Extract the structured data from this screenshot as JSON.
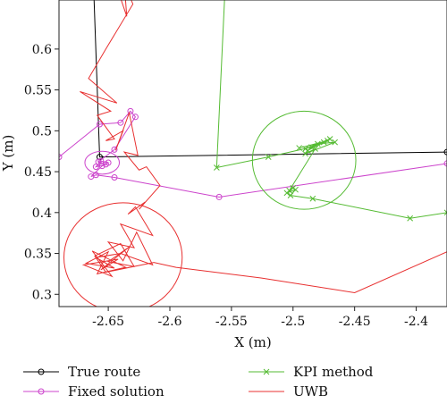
{
  "chart_data": {
    "type": "line",
    "xlabel": "X (m)",
    "ylabel": "Y (m)",
    "xlim": [
      -2.69,
      -2.375
    ],
    "ylim": [
      0.285,
      0.66
    ],
    "xticks": [
      -2.65,
      -2.6,
      -2.55,
      -2.5,
      -2.45,
      -2.4
    ],
    "xtick_labels": [
      "-2.65",
      "-2.6",
      "-2.55",
      "-2.5",
      "-2.45",
      "-2.4"
    ],
    "yticks": [
      0.3,
      0.35,
      0.4,
      0.45,
      0.5,
      0.55,
      0.6
    ],
    "ytick_labels": [
      "0.3",
      "0.35",
      "0.4",
      "0.45",
      "0.5",
      "0.55",
      "0.6"
    ],
    "grid": false,
    "legend_position": "below",
    "series": [
      {
        "name": "True route",
        "color": "#000000",
        "marker": "o",
        "points": [
          [
            -2.662,
            0.68
          ],
          [
            -2.657,
            0.468
          ],
          [
            -2.375,
            0.474
          ]
        ]
      },
      {
        "name": "Fixed solution",
        "color": "#cc44cc",
        "marker": "o",
        "points": [
          [
            -2.69,
            0.468
          ],
          [
            -2.657,
            0.508
          ],
          [
            -2.64,
            0.51
          ],
          [
            -2.632,
            0.524
          ],
          [
            -2.628,
            0.517
          ],
          [
            -2.645,
            0.477
          ],
          [
            -2.658,
            0.462
          ],
          [
            -2.652,
            0.459
          ],
          [
            -2.66,
            0.456
          ],
          [
            -2.656,
            0.463
          ],
          [
            -2.65,
            0.461
          ],
          [
            -2.655,
            0.457
          ],
          [
            -2.664,
            0.444
          ],
          [
            -2.66,
            0.446
          ],
          [
            -2.645,
            0.443
          ],
          [
            -2.56,
            0.419
          ],
          [
            -2.375,
            0.46
          ]
        ]
      },
      {
        "name": "KPI method",
        "color": "#55bb33",
        "marker": "x",
        "points": [
          [
            -2.555,
            0.68
          ],
          [
            -2.562,
            0.455
          ],
          [
            -2.52,
            0.468
          ],
          [
            -2.485,
            0.48
          ],
          [
            -2.47,
            0.49
          ],
          [
            -2.49,
            0.478
          ],
          [
            -2.475,
            0.486
          ],
          [
            -2.495,
            0.479
          ],
          [
            -2.472,
            0.488
          ],
          [
            -2.488,
            0.476
          ],
          [
            -2.48,
            0.484
          ],
          [
            -2.466,
            0.486
          ],
          [
            -2.49,
            0.472
          ],
          [
            -2.482,
            0.478
          ],
          [
            -2.503,
            0.427
          ],
          [
            -2.5,
            0.43
          ],
          [
            -2.505,
            0.424
          ],
          [
            -2.498,
            0.428
          ],
          [
            -2.502,
            0.421
          ],
          [
            -2.484,
            0.417
          ],
          [
            -2.405,
            0.393
          ],
          [
            -2.375,
            0.4
          ]
        ]
      },
      {
        "name": "UWB",
        "color": "#e83030",
        "marker": "",
        "points": [
          [
            -2.644,
            0.68
          ],
          [
            -2.635,
            0.64
          ],
          [
            -2.637,
            0.68
          ],
          [
            -2.63,
            0.655
          ],
          [
            -2.652,
            0.6
          ],
          [
            -2.666,
            0.564
          ],
          [
            -2.643,
            0.534
          ],
          [
            -2.673,
            0.548
          ],
          [
            -2.648,
            0.524
          ],
          [
            -2.659,
            0.519
          ],
          [
            -2.645,
            0.49
          ],
          [
            -2.652,
            0.488
          ],
          [
            -2.638,
            0.5
          ],
          [
            -2.644,
            0.476
          ],
          [
            -2.633,
            0.522
          ],
          [
            -2.626,
            0.47
          ],
          [
            -2.637,
            0.474
          ],
          [
            -2.625,
            0.452
          ],
          [
            -2.619,
            0.456
          ],
          [
            -2.608,
            0.433
          ],
          [
            -2.625,
            0.404
          ],
          [
            -2.62,
            0.413
          ],
          [
            -2.634,
            0.398
          ],
          [
            -2.628,
            0.407
          ],
          [
            -2.614,
            0.372
          ],
          [
            -2.64,
            0.386
          ],
          [
            -2.629,
            0.357
          ],
          [
            -2.65,
            0.364
          ],
          [
            -2.638,
            0.341
          ],
          [
            -2.627,
            0.376
          ],
          [
            -2.614,
            0.336
          ],
          [
            -2.64,
            0.35
          ],
          [
            -2.66,
            0.345
          ],
          [
            -2.645,
            0.332
          ],
          [
            -2.668,
            0.338
          ],
          [
            -2.65,
            0.352
          ],
          [
            -2.659,
            0.325
          ],
          [
            -2.636,
            0.333
          ],
          [
            -2.663,
            0.353
          ],
          [
            -2.647,
            0.322
          ],
          [
            -2.67,
            0.336
          ],
          [
            -2.642,
            0.343
          ],
          [
            -2.656,
            0.33
          ],
          [
            -2.633,
            0.358
          ],
          [
            -2.65,
            0.34
          ],
          [
            -2.629,
            0.334
          ],
          [
            -2.64,
            0.362
          ],
          [
            -2.661,
            0.347
          ],
          [
            -2.652,
            0.327
          ],
          [
            -2.613,
            0.339
          ],
          [
            -2.595,
            0.333
          ],
          [
            -2.526,
            0.32
          ],
          [
            -2.45,
            0.302
          ],
          [
            -2.375,
            0.352
          ]
        ]
      }
    ],
    "annotations": [
      {
        "shape": "circle",
        "color": "#cc44cc",
        "cx": -2.655,
        "cy": 0.461,
        "rx": 0.014,
        "ry": 0.014
      },
      {
        "shape": "circle",
        "color": "#55bb33",
        "cx": -2.491,
        "cy": 0.464,
        "rx": 0.042,
        "ry": 0.06
      },
      {
        "shape": "circle",
        "color": "#e83030",
        "cx": -2.638,
        "cy": 0.345,
        "rx": 0.048,
        "ry": 0.067
      }
    ]
  }
}
